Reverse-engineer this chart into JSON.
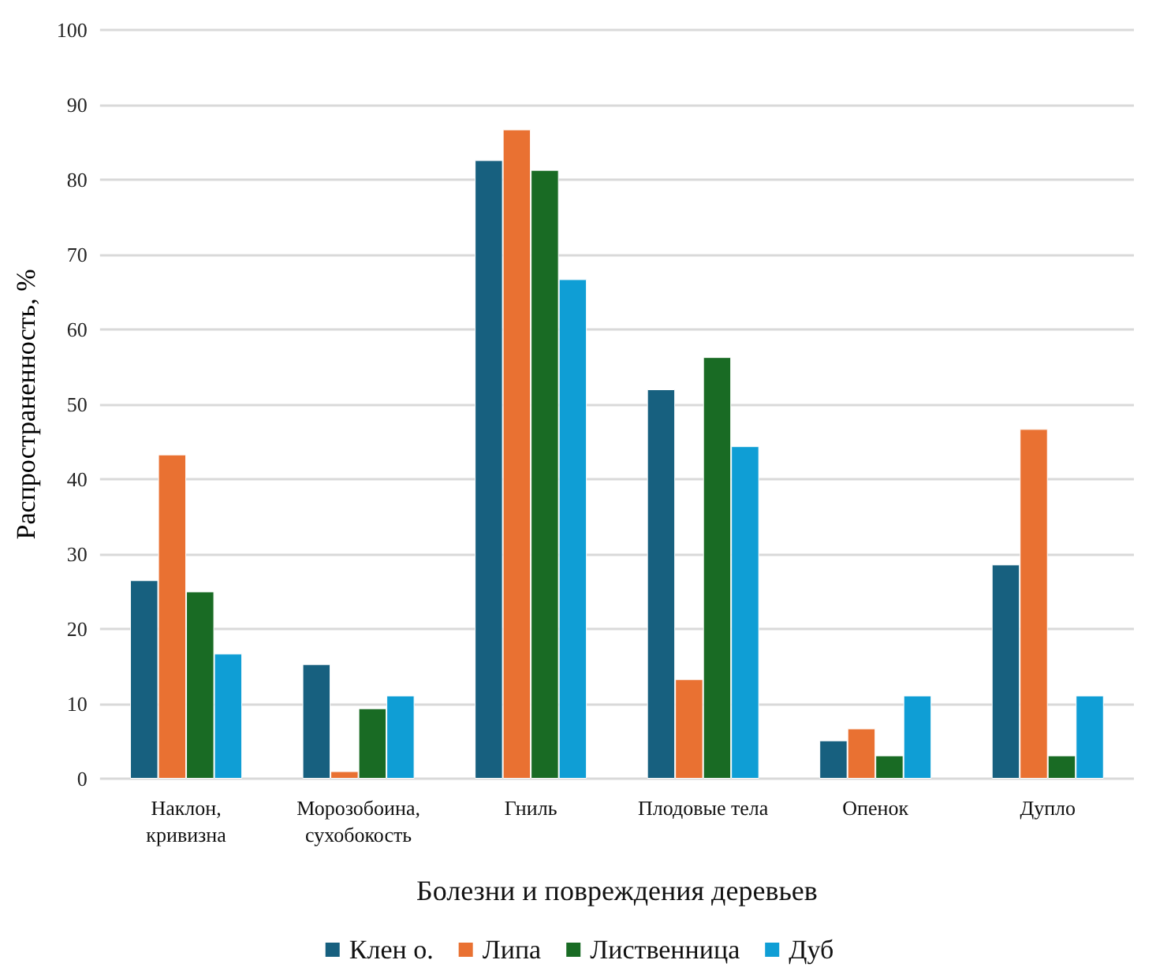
{
  "chart_data": {
    "type": "bar",
    "xlabel": "Болезни и повреждения деревьев",
    "ylabel": "Распространенность, %",
    "categories": [
      "Наклон, кривизна",
      "Морозобоина, сухобокость",
      "Гниль",
      "Плодовые тела",
      "Опенок",
      "Дупло"
    ],
    "series": [
      {
        "name": "Клен о.",
        "color": "#17607f",
        "values": [
          26.5,
          15.3,
          82.6,
          52,
          5.1,
          28.6
        ]
      },
      {
        "name": "Липа",
        "color": "#e97132",
        "values": [
          43.3,
          1,
          86.7,
          13.3,
          6.7,
          46.7
        ]
      },
      {
        "name": "Лиственница",
        "color": "#196b24",
        "values": [
          25,
          9.4,
          81.3,
          56.3,
          3.1,
          3.1
        ]
      },
      {
        "name": "Дуб",
        "color": "#0f9ed5",
        "values": [
          16.7,
          11.1,
          66.7,
          44.4,
          11.1,
          11.1
        ]
      }
    ],
    "ylim": [
      0,
      100
    ],
    "yticks": [
      0,
      10,
      20,
      30,
      40,
      50,
      60,
      70,
      80,
      90,
      100
    ],
    "grid": "y",
    "legend": "bottom"
  }
}
